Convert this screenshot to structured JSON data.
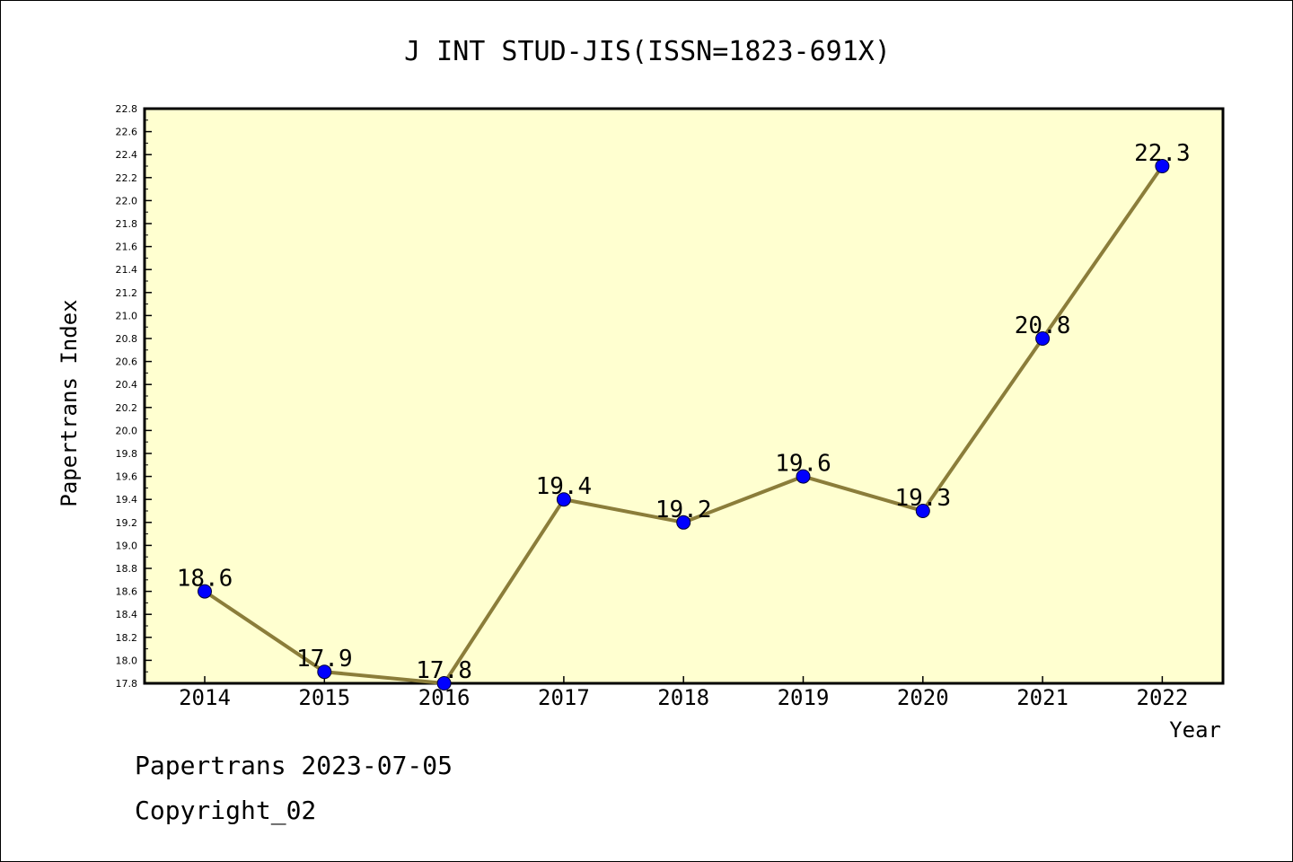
{
  "footer": {
    "line1": "Papertrans 2023-07-05",
    "line2": "Copyright_02"
  },
  "colors": {
    "plot_background": "#FFFFD0",
    "line": "#8B7D3A",
    "marker": "#0000FF",
    "axis": "#000000"
  },
  "chart_data": {
    "type": "line",
    "title": "J INT STUD-JIS(ISSN=1823-691X)",
    "xlabel": "Year",
    "ylabel": "Papertrans Index",
    "categories": [
      "2014",
      "2015",
      "2016",
      "2017",
      "2018",
      "2019",
      "2020",
      "2021",
      "2022"
    ],
    "series": [
      {
        "values": [
          18.6,
          17.9,
          17.8,
          19.4,
          19.2,
          19.6,
          19.3,
          20.8,
          22.3
        ],
        "labels": [
          "18.6",
          "17.9",
          "17.8",
          "19.4",
          "19.2",
          "19.6",
          "19.3",
          "20.8",
          "22.3"
        ]
      }
    ],
    "ylim": [
      17.8,
      22.8
    ],
    "yticks": [
      "17.8",
      "18.0",
      "18.2",
      "18.4",
      "18.6",
      "18.8",
      "19.0",
      "19.2",
      "19.4",
      "19.6",
      "19.8",
      "20.0",
      "20.2",
      "20.4",
      "20.6",
      "20.8",
      "21.0",
      "21.2",
      "21.4",
      "21.6",
      "21.8",
      "22.0",
      "22.2",
      "22.4",
      "22.6",
      "22.8"
    ],
    "grid": false,
    "legend": "none"
  }
}
